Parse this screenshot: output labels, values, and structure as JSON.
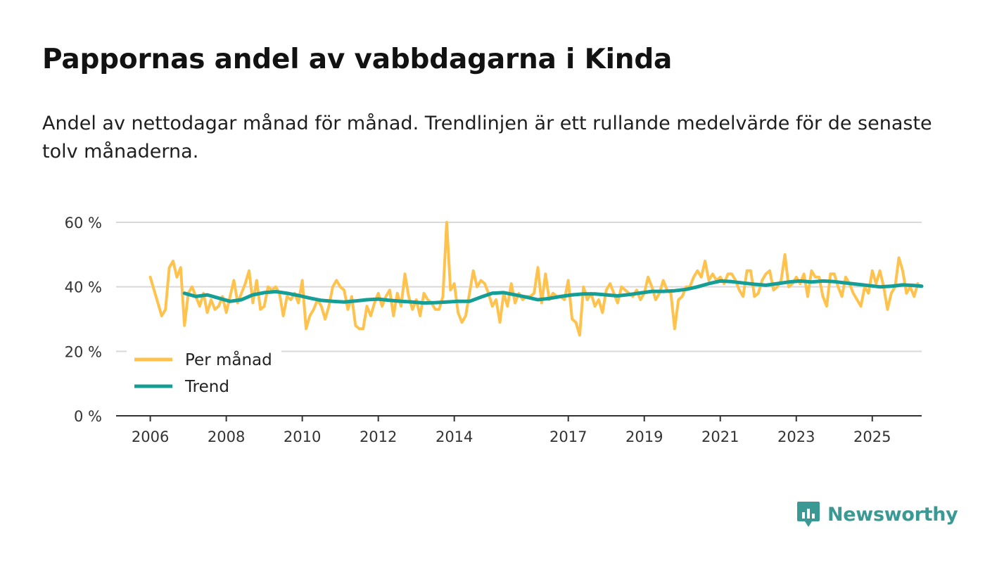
{
  "title": "Pappornas andel av vabbdagarna i Kinda",
  "subtitle": "Andel av nettodagar månad för månad. Trendlinjen är ett rullande medelvärde för de senaste tolv månaderna.",
  "brand": {
    "name": "Newsworthy",
    "color": "#3a9a93"
  },
  "chart_data": {
    "type": "line",
    "title": "Pappornas andel av vabbdagarna i Kinda",
    "xlabel": "",
    "ylabel": "",
    "ylim": [
      0,
      60
    ],
    "y_ticks": [
      0,
      20,
      40,
      60
    ],
    "y_tick_labels": [
      "0 %",
      "20 %",
      "40 %",
      "60 %"
    ],
    "x_range": [
      2005.1,
      2026.3
    ],
    "x_ticks": [
      2006,
      2008,
      2010,
      2012,
      2014,
      2017,
      2019,
      2021,
      2023,
      2025
    ],
    "x_tick_labels": [
      "2006",
      "2008",
      "2010",
      "2012",
      "2014",
      "2017",
      "2019",
      "2021",
      "2023",
      "2025"
    ],
    "grid": true,
    "legend_position": "bottom-left",
    "series": [
      {
        "name": "Per månad",
        "color": "#ffc34d",
        "points": [
          [
            2006.0,
            43
          ],
          [
            2006.1,
            39
          ],
          [
            2006.2,
            35
          ],
          [
            2006.3,
            31
          ],
          [
            2006.4,
            33
          ],
          [
            2006.5,
            46
          ],
          [
            2006.6,
            48
          ],
          [
            2006.7,
            43
          ],
          [
            2006.8,
            46
          ],
          [
            2006.9,
            28
          ],
          [
            2007.0,
            38
          ],
          [
            2007.1,
            40
          ],
          [
            2007.2,
            37
          ],
          [
            2007.3,
            34
          ],
          [
            2007.4,
            38
          ],
          [
            2007.5,
            32
          ],
          [
            2007.6,
            36
          ],
          [
            2007.7,
            33
          ],
          [
            2007.8,
            34
          ],
          [
            2007.9,
            37
          ],
          [
            2008.0,
            32
          ],
          [
            2008.1,
            37
          ],
          [
            2008.2,
            42
          ],
          [
            2008.3,
            35
          ],
          [
            2008.4,
            38
          ],
          [
            2008.5,
            41
          ],
          [
            2008.6,
            45
          ],
          [
            2008.7,
            35
          ],
          [
            2008.8,
            42
          ],
          [
            2008.9,
            33
          ],
          [
            2009.0,
            34
          ],
          [
            2009.1,
            40
          ],
          [
            2009.2,
            39
          ],
          [
            2009.3,
            40
          ],
          [
            2009.4,
            38
          ],
          [
            2009.5,
            31
          ],
          [
            2009.6,
            37
          ],
          [
            2009.7,
            36
          ],
          [
            2009.8,
            38
          ],
          [
            2009.9,
            35
          ],
          [
            2010.0,
            42
          ],
          [
            2010.1,
            27
          ],
          [
            2010.2,
            31
          ],
          [
            2010.3,
            33
          ],
          [
            2010.4,
            36
          ],
          [
            2010.5,
            34
          ],
          [
            2010.6,
            30
          ],
          [
            2010.7,
            34
          ],
          [
            2010.8,
            40
          ],
          [
            2010.9,
            42
          ],
          [
            2011.0,
            40
          ],
          [
            2011.1,
            39
          ],
          [
            2011.2,
            33
          ],
          [
            2011.3,
            37
          ],
          [
            2011.4,
            28
          ],
          [
            2011.5,
            27
          ],
          [
            2011.6,
            27
          ],
          [
            2011.7,
            34
          ],
          [
            2011.8,
            31
          ],
          [
            2011.9,
            35
          ],
          [
            2012.0,
            38
          ],
          [
            2012.1,
            34
          ],
          [
            2012.2,
            37
          ],
          [
            2012.3,
            39
          ],
          [
            2012.4,
            31
          ],
          [
            2012.5,
            38
          ],
          [
            2012.6,
            34
          ],
          [
            2012.7,
            44
          ],
          [
            2012.8,
            37
          ],
          [
            2012.9,
            33
          ],
          [
            2013.0,
            36
          ],
          [
            2013.1,
            31
          ],
          [
            2013.2,
            38
          ],
          [
            2013.3,
            36
          ],
          [
            2013.4,
            35
          ],
          [
            2013.5,
            33
          ],
          [
            2013.6,
            33
          ],
          [
            2013.7,
            37
          ],
          [
            2013.8,
            60
          ],
          [
            2013.9,
            39
          ],
          [
            2014.0,
            41
          ],
          [
            2014.1,
            32
          ],
          [
            2014.2,
            29
          ],
          [
            2014.3,
            31
          ],
          [
            2014.4,
            38
          ],
          [
            2014.5,
            45
          ],
          [
            2014.6,
            40
          ],
          [
            2014.7,
            42
          ],
          [
            2014.8,
            41
          ],
          [
            2014.9,
            38
          ],
          [
            2015.0,
            34
          ],
          [
            2015.1,
            36
          ],
          [
            2015.2,
            29
          ],
          [
            2015.3,
            38
          ],
          [
            2015.4,
            34
          ],
          [
            2015.5,
            41
          ],
          [
            2015.6,
            35
          ],
          [
            2015.7,
            38
          ],
          [
            2015.8,
            36
          ],
          [
            2015.9,
            37
          ],
          [
            2016.0,
            37
          ],
          [
            2016.1,
            38
          ],
          [
            2016.2,
            46
          ],
          [
            2016.3,
            35
          ],
          [
            2016.4,
            44
          ],
          [
            2016.5,
            36
          ],
          [
            2016.6,
            38
          ],
          [
            2016.7,
            37
          ],
          [
            2016.8,
            37
          ],
          [
            2016.9,
            36
          ],
          [
            2017.0,
            42
          ],
          [
            2017.1,
            30
          ],
          [
            2017.2,
            29
          ],
          [
            2017.3,
            25
          ],
          [
            2017.4,
            40
          ],
          [
            2017.5,
            36
          ],
          [
            2017.6,
            38
          ],
          [
            2017.7,
            34
          ],
          [
            2017.8,
            36
          ],
          [
            2017.9,
            32
          ],
          [
            2018.0,
            39
          ],
          [
            2018.1,
            41
          ],
          [
            2018.2,
            38
          ],
          [
            2018.3,
            35
          ],
          [
            2018.4,
            40
          ],
          [
            2018.5,
            39
          ],
          [
            2018.6,
            38
          ],
          [
            2018.7,
            37
          ],
          [
            2018.8,
            39
          ],
          [
            2018.9,
            36
          ],
          [
            2019.0,
            38
          ],
          [
            2019.1,
            43
          ],
          [
            2019.2,
            40
          ],
          [
            2019.3,
            36
          ],
          [
            2019.4,
            38
          ],
          [
            2019.5,
            42
          ],
          [
            2019.6,
            39
          ],
          [
            2019.7,
            38
          ],
          [
            2019.8,
            27
          ],
          [
            2019.9,
            36
          ],
          [
            2020.0,
            37
          ],
          [
            2020.1,
            40
          ],
          [
            2020.2,
            40
          ],
          [
            2020.3,
            43
          ],
          [
            2020.4,
            45
          ],
          [
            2020.5,
            43
          ],
          [
            2020.6,
            48
          ],
          [
            2020.7,
            42
          ],
          [
            2020.8,
            44
          ],
          [
            2020.9,
            42
          ],
          [
            2021.0,
            43
          ],
          [
            2021.1,
            41
          ],
          [
            2021.2,
            44
          ],
          [
            2021.3,
            44
          ],
          [
            2021.4,
            42
          ],
          [
            2021.5,
            39
          ],
          [
            2021.6,
            37
          ],
          [
            2021.7,
            45
          ],
          [
            2021.8,
            45
          ],
          [
            2021.9,
            37
          ],
          [
            2022.0,
            38
          ],
          [
            2022.1,
            42
          ],
          [
            2022.2,
            44
          ],
          [
            2022.3,
            45
          ],
          [
            2022.4,
            39
          ],
          [
            2022.5,
            40
          ],
          [
            2022.6,
            42
          ],
          [
            2022.7,
            50
          ],
          [
            2022.8,
            40
          ],
          [
            2022.9,
            41
          ],
          [
            2023.0,
            43
          ],
          [
            2023.1,
            41
          ],
          [
            2023.2,
            44
          ],
          [
            2023.3,
            37
          ],
          [
            2023.4,
            45
          ],
          [
            2023.5,
            43
          ],
          [
            2023.6,
            43
          ],
          [
            2023.7,
            37
          ],
          [
            2023.8,
            34
          ],
          [
            2023.9,
            44
          ],
          [
            2024.0,
            44
          ],
          [
            2024.1,
            40
          ],
          [
            2024.2,
            37
          ],
          [
            2024.3,
            43
          ],
          [
            2024.4,
            41
          ],
          [
            2024.5,
            38
          ],
          [
            2024.6,
            36
          ],
          [
            2024.7,
            34
          ],
          [
            2024.8,
            40
          ],
          [
            2024.9,
            38
          ],
          [
            2025.0,
            45
          ],
          [
            2025.1,
            41
          ],
          [
            2025.2,
            45
          ],
          [
            2025.3,
            40
          ],
          [
            2025.4,
            33
          ],
          [
            2025.5,
            38
          ],
          [
            2025.6,
            40
          ],
          [
            2025.7,
            49
          ],
          [
            2025.8,
            45
          ],
          [
            2025.9,
            38
          ],
          [
            2026.0,
            40
          ],
          [
            2026.1,
            37
          ],
          [
            2026.2,
            41
          ]
        ]
      },
      {
        "name": "Trend",
        "color": "#159e96",
        "points": [
          [
            2006.9,
            38
          ],
          [
            2007.2,
            37
          ],
          [
            2007.5,
            37.5
          ],
          [
            2007.8,
            36.5
          ],
          [
            2008.1,
            35.5
          ],
          [
            2008.4,
            36
          ],
          [
            2008.7,
            37.5
          ],
          [
            2009.0,
            38.2
          ],
          [
            2009.3,
            38.5
          ],
          [
            2009.6,
            38
          ],
          [
            2009.9,
            37.3
          ],
          [
            2010.2,
            36.5
          ],
          [
            2010.5,
            35.8
          ],
          [
            2010.8,
            35.5
          ],
          [
            2011.1,
            35.3
          ],
          [
            2011.4,
            35.6
          ],
          [
            2011.7,
            36
          ],
          [
            2012.0,
            36.2
          ],
          [
            2012.3,
            35.8
          ],
          [
            2012.6,
            35.5
          ],
          [
            2012.9,
            35.3
          ],
          [
            2013.2,
            35
          ],
          [
            2013.5,
            35.1
          ],
          [
            2013.8,
            35.3
          ],
          [
            2014.1,
            35.5
          ],
          [
            2014.4,
            35.5
          ],
          [
            2014.7,
            36.8
          ],
          [
            2015.0,
            38
          ],
          [
            2015.3,
            38.2
          ],
          [
            2015.6,
            37.5
          ],
          [
            2015.9,
            36.8
          ],
          [
            2016.2,
            36
          ],
          [
            2016.5,
            36.4
          ],
          [
            2016.8,
            37
          ],
          [
            2017.1,
            37.5
          ],
          [
            2017.4,
            37.8
          ],
          [
            2017.7,
            37.8
          ],
          [
            2018.0,
            37.5
          ],
          [
            2018.3,
            37.2
          ],
          [
            2018.6,
            37.6
          ],
          [
            2018.9,
            38.1
          ],
          [
            2019.2,
            38.6
          ],
          [
            2019.5,
            38.6
          ],
          [
            2019.8,
            38.8
          ],
          [
            2020.1,
            39.2
          ],
          [
            2020.4,
            40
          ],
          [
            2020.7,
            41
          ],
          [
            2021.0,
            41.8
          ],
          [
            2021.3,
            41.6
          ],
          [
            2021.6,
            41.2
          ],
          [
            2021.9,
            40.8
          ],
          [
            2022.2,
            40.5
          ],
          [
            2022.5,
            41
          ],
          [
            2022.8,
            41.5
          ],
          [
            2023.1,
            41.8
          ],
          [
            2023.4,
            41.5
          ],
          [
            2023.7,
            41.8
          ],
          [
            2024.0,
            41.6
          ],
          [
            2024.3,
            41.2
          ],
          [
            2024.6,
            40.8
          ],
          [
            2024.9,
            40.4
          ],
          [
            2025.2,
            40
          ],
          [
            2025.5,
            40.2
          ],
          [
            2025.8,
            40.6
          ],
          [
            2026.1,
            40.4
          ],
          [
            2026.3,
            40.2
          ]
        ]
      }
    ]
  }
}
